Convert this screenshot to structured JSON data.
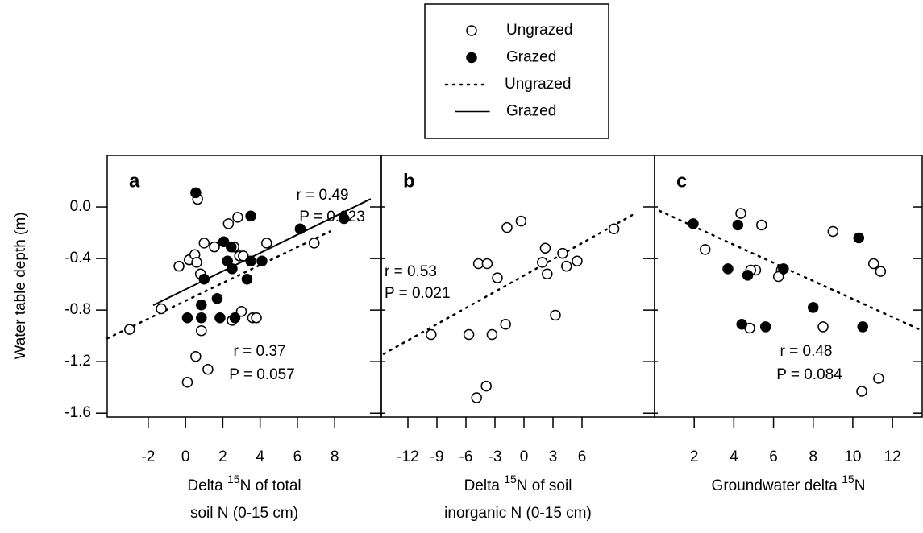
{
  "chart_data": [
    {
      "type": "scatter",
      "label": "a",
      "ylabel": "Water table depth (m)",
      "xlabel": {
        "before": "Delta ",
        "sup": "15",
        "after": "N of total",
        "line2": "soil N (0-15 cm)"
      },
      "xlim": [
        -4.2,
        10.5
      ],
      "xticks": [
        -2,
        0,
        2,
        4,
        6,
        8
      ],
      "ylim": [
        -1.63,
        0.4
      ],
      "yticks": [
        {
          "value": 0,
          "label": "0.0"
        },
        -0.4,
        -0.8,
        -1.2,
        -1.6
      ],
      "series": [
        {
          "name": "Ungrazed",
          "marker": "open",
          "color": "#000",
          "x": [
            -3.0,
            -1.3,
            -0.35,
            0.2,
            0.5,
            0.6,
            0.65,
            0.8,
            0.85,
            0.55,
            0.1,
            1.2,
            1.0,
            1.55,
            2.3,
            2.8,
            2.6,
            2.9,
            3.1,
            3.0,
            2.5,
            3.6,
            3.8,
            4.35,
            6.9
          ],
          "values": [
            -0.95,
            -0.79,
            -0.46,
            -0.41,
            -0.37,
            -0.43,
            0.06,
            -0.52,
            -0.96,
            -1.16,
            -1.36,
            -1.26,
            -0.28,
            -0.31,
            -0.13,
            -0.08,
            -0.31,
            -0.38,
            -0.38,
            -0.81,
            -0.88,
            -0.86,
            -0.86,
            -0.28,
            -0.28
          ]
        },
        {
          "name": "Grazed",
          "marker": "filled",
          "color": "#000",
          "x": [
            0.55,
            0.1,
            0.85,
            0.85,
            1.0,
            1.7,
            1.85,
            2.05,
            2.25,
            2.45,
            2.5,
            2.65,
            3.3,
            3.5,
            3.5,
            4.1,
            6.15,
            8.5
          ],
          "values": [
            0.11,
            -0.86,
            -0.86,
            -0.76,
            -0.56,
            -0.71,
            -0.86,
            -0.27,
            -0.42,
            -0.31,
            -0.48,
            -0.86,
            -0.56,
            -0.42,
            -0.07,
            -0.42,
            -0.17,
            -0.09
          ]
        }
      ],
      "fits": [
        {
          "name": "Ungrazed",
          "style": "dotted",
          "x": [
            -4.2,
            7.75
          ],
          "values": [
            -1.02,
            -0.19
          ]
        },
        {
          "name": "Grazed",
          "style": "solid",
          "x": [
            -1.7,
            9.9
          ],
          "values": [
            -0.76,
            0.06
          ]
        }
      ],
      "annotations": [
        {
          "r": "r = 0.49",
          "P": "P = 0.023"
        },
        {
          "r": "r = 0.37",
          "P": "P = 0.057"
        }
      ]
    },
    {
      "type": "scatter",
      "label": "b",
      "xlabel": {
        "before": "Delta ",
        "sup": "15",
        "after": "N of soil",
        "line2": "inorganic N (0-15 cm)"
      },
      "xlim": [
        -14.75,
        13.5
      ],
      "xticks": [
        -12,
        -9,
        -6,
        -3,
        0,
        3,
        6
      ],
      "ylim": [
        -1.63,
        0.4
      ],
      "yticks": [
        0,
        -0.4,
        -0.8,
        -1.2,
        -1.6
      ],
      "series": [
        {
          "name": "Ungrazed",
          "marker": "open",
          "color": "#000",
          "x": [
            -9.6,
            -4.7,
            -3.8,
            -2.75,
            -1.75,
            -0.3,
            1.9,
            2.2,
            2.4,
            4.0,
            4.4,
            5.5,
            9.3,
            -3.3,
            -1.9,
            -5.7,
            3.25,
            -3.9,
            -4.9
          ],
          "values": [
            -0.99,
            -0.44,
            -0.44,
            -0.55,
            -0.16,
            -0.11,
            -0.43,
            -0.32,
            -0.52,
            -0.36,
            -0.46,
            -0.42,
            -0.17,
            -0.99,
            -0.91,
            -0.99,
            -0.84,
            -1.39,
            -1.48
          ]
        }
      ],
      "fits": [
        {
          "name": "Ungrazed",
          "style": "dotted",
          "x": [
            -14.5,
            11.5
          ],
          "values": [
            -1.14,
            -0.05
          ]
        }
      ],
      "annotations": [
        {
          "r": "r = 0.53",
          "P": "P = 0.021"
        }
      ]
    },
    {
      "type": "scatter",
      "label": "c",
      "xlabel": {
        "before": "Groundwater delta ",
        "sup": "15",
        "after": "N"
      },
      "xlim": [
        0,
        13.5
      ],
      "xticks": [
        2,
        4,
        6,
        8,
        10,
        12
      ],
      "ylim": [
        -1.63,
        0.4
      ],
      "yticks": [
        0,
        -0.4,
        -0.8,
        -1.2,
        -1.6
      ],
      "series": [
        {
          "name": "Ungrazed",
          "marker": "open",
          "color": "#000",
          "x": [
            4.35,
            2.55,
            5.4,
            5.1,
            4.85,
            6.4,
            6.25,
            9.0,
            11.05,
            11.4,
            8.5,
            4.8,
            10.45,
            11.3
          ],
          "values": [
            -0.05,
            -0.33,
            -0.14,
            -0.49,
            -0.49,
            -0.49,
            -0.54,
            -0.19,
            -0.44,
            -0.5,
            -0.93,
            -0.94,
            -1.43,
            -1.33
          ]
        },
        {
          "name": "Grazed",
          "marker": "filled",
          "color": "#000",
          "x": [
            1.95,
            4.2,
            3.7,
            4.7,
            6.5,
            8.0,
            4.4,
            5.6,
            10.3,
            10.5
          ],
          "values": [
            -0.13,
            -0.14,
            -0.48,
            -0.53,
            -0.48,
            -0.78,
            -0.91,
            -0.93,
            -0.24,
            -0.93
          ]
        }
      ],
      "fits": [
        {
          "name": "Ungrazed",
          "style": "dotted",
          "x": [
            0.25,
            13.5
          ],
          "values": [
            -0.03,
            -0.96
          ]
        }
      ],
      "annotations": [
        {
          "r": "r = 0.48",
          "P": "P = 0.084"
        }
      ]
    }
  ]
}
